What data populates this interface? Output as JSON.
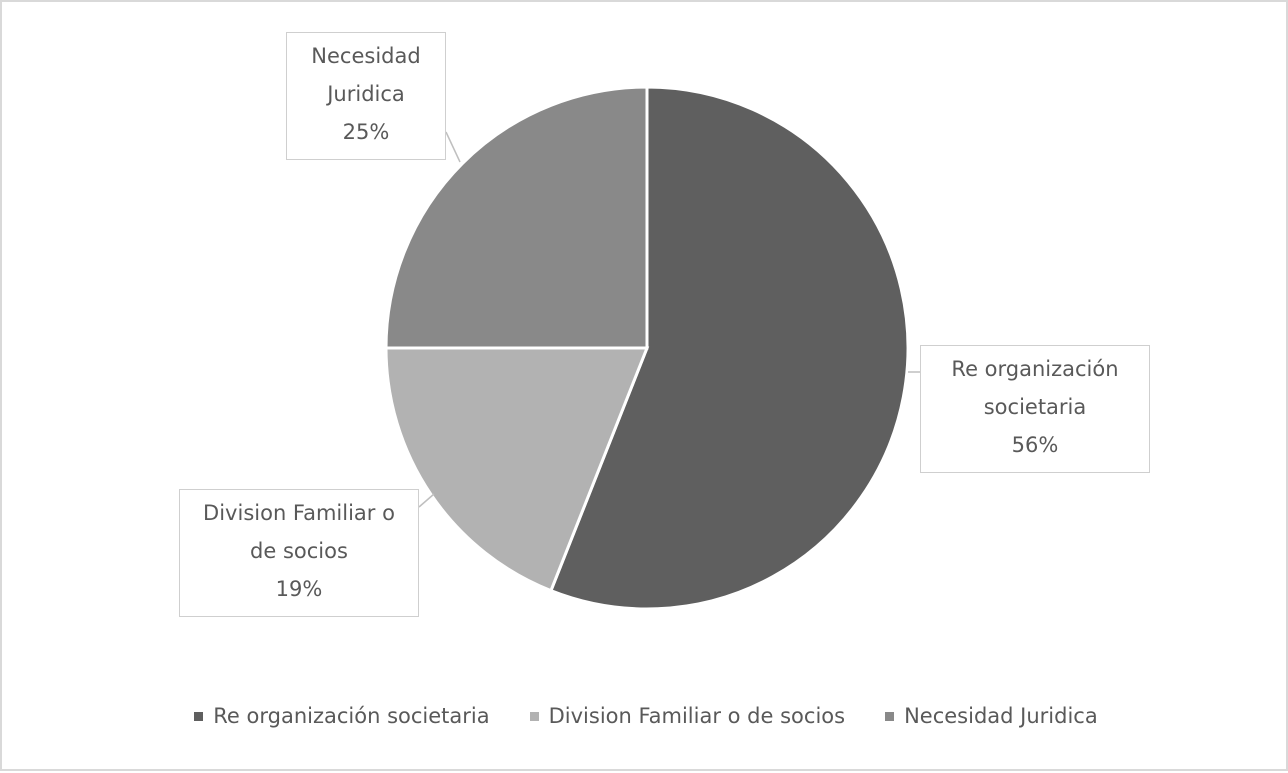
{
  "chart_data": {
    "type": "pie",
    "categories": [
      "Re organización societaria",
      "Division Familiar o de socios",
      "Necesidad Juridica"
    ],
    "values": [
      56,
      19,
      25
    ],
    "value_labels": [
      "56%",
      "19%",
      "25%"
    ],
    "colors": [
      "#5f5f5f",
      "#b2b2b2",
      "#898989"
    ],
    "legend": "bottom"
  }
}
